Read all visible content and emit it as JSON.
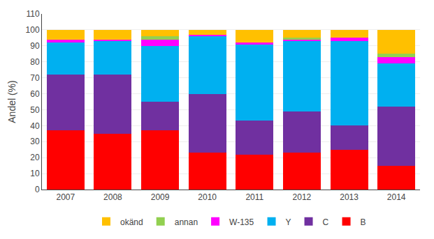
{
  "chart_data": {
    "type": "bar",
    "stacked": true,
    "categories": [
      "2007",
      "2008",
      "2009",
      "2010",
      "2011",
      "2012",
      "2013",
      "2014"
    ],
    "series": [
      {
        "name": "B",
        "color": "#FF0000",
        "values": [
          37,
          35,
          37,
          23,
          22,
          23,
          25,
          15
        ]
      },
      {
        "name": "C",
        "color": "#7030A0",
        "values": [
          35,
          37,
          18,
          37,
          21,
          26,
          15,
          37
        ]
      },
      {
        "name": "Y",
        "color": "#00B0F0",
        "values": [
          20,
          21,
          35,
          36,
          48,
          44,
          53,
          27
        ]
      },
      {
        "name": "W-135",
        "color": "#FF00FF",
        "values": [
          2,
          1,
          4,
          1,
          1,
          1,
          2,
          4
        ]
      },
      {
        "name": "annan",
        "color": "#92D050",
        "values": [
          0,
          0,
          2,
          0,
          0,
          1,
          0,
          2
        ]
      },
      {
        "name": "okänd",
        "color": "#FFC000",
        "values": [
          6,
          6,
          4,
          3,
          8,
          5,
          5,
          15
        ]
      }
    ],
    "ylabel": "Andel (%)",
    "ylim": [
      0,
      110
    ],
    "yticks": [
      0,
      10,
      20,
      30,
      40,
      50,
      60,
      70,
      80,
      90,
      100,
      110
    ],
    "grid": true,
    "legend": "bottom"
  }
}
